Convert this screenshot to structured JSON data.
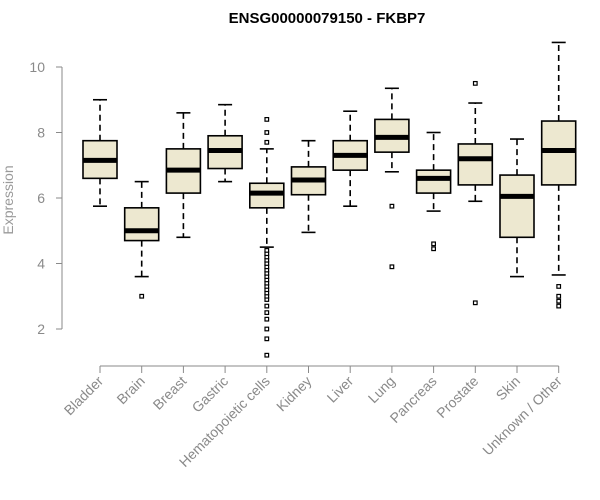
{
  "chart_data": {
    "type": "boxplot",
    "title": "ENSG00000079150 - FKBP7",
    "ylabel": "Expression",
    "xlabel": "",
    "ylim": [
      1.0,
      11.0
    ],
    "yticks": [
      2,
      4,
      6,
      8,
      10
    ],
    "grid": false,
    "colors": {
      "box_fill": "#ede8d0",
      "box_stroke": "#000000",
      "axis": "#8a8a8a"
    },
    "categories": [
      "Bladder",
      "Brain",
      "Breast",
      "Gastric",
      "Hematopoietic cells",
      "Kidney",
      "Liver",
      "Lung",
      "Pancreas",
      "Prostate",
      "Skin",
      "Unknown / Other"
    ],
    "boxes": [
      {
        "name": "Bladder",
        "whisker_low": 5.75,
        "q1": 6.6,
        "median": 7.15,
        "q3": 7.75,
        "whisker_high": 9.0,
        "outliers": []
      },
      {
        "name": "Brain",
        "whisker_low": 3.6,
        "q1": 4.7,
        "median": 5.0,
        "q3": 5.7,
        "whisker_high": 6.5,
        "outliers": [
          3.0
        ]
      },
      {
        "name": "Breast",
        "whisker_low": 4.8,
        "q1": 6.15,
        "median": 6.85,
        "q3": 7.5,
        "whisker_high": 8.6,
        "outliers": []
      },
      {
        "name": "Gastric",
        "whisker_low": 6.5,
        "q1": 6.9,
        "median": 7.45,
        "q3": 7.9,
        "whisker_high": 8.85,
        "outliers": []
      },
      {
        "name": "Hematopoietic cells",
        "whisker_low": 4.5,
        "q1": 5.7,
        "median": 6.15,
        "q3": 6.45,
        "whisker_high": 7.5,
        "outliers": [
          1.2,
          1.7,
          2.0,
          2.3,
          2.5,
          2.7,
          2.9,
          3.0,
          3.1,
          3.2,
          3.3,
          3.4,
          3.5,
          3.6,
          3.7,
          3.8,
          3.9,
          4.0,
          4.1,
          4.2,
          4.3,
          4.4,
          7.7,
          8.0,
          8.4
        ]
      },
      {
        "name": "Kidney",
        "whisker_low": 4.95,
        "q1": 6.1,
        "median": 6.55,
        "q3": 6.95,
        "whisker_high": 7.75,
        "outliers": []
      },
      {
        "name": "Liver",
        "whisker_low": 5.75,
        "q1": 6.85,
        "median": 7.3,
        "q3": 7.75,
        "whisker_high": 8.65,
        "outliers": []
      },
      {
        "name": "Lung",
        "whisker_low": 6.8,
        "q1": 7.4,
        "median": 7.85,
        "q3": 8.4,
        "whisker_high": 9.35,
        "outliers": [
          5.75,
          3.9
        ]
      },
      {
        "name": "Pancreas",
        "whisker_low": 5.6,
        "q1": 6.15,
        "median": 6.6,
        "q3": 6.85,
        "whisker_high": 8.0,
        "outliers": [
          4.6,
          4.45
        ]
      },
      {
        "name": "Prostate",
        "whisker_low": 5.9,
        "q1": 6.4,
        "median": 7.2,
        "q3": 7.65,
        "whisker_high": 8.9,
        "outliers": [
          9.5,
          2.8
        ]
      },
      {
        "name": "Skin",
        "whisker_low": 3.6,
        "q1": 4.8,
        "median": 6.05,
        "q3": 6.7,
        "whisker_high": 7.8,
        "outliers": []
      },
      {
        "name": "Unknown / Other",
        "whisker_low": 3.65,
        "q1": 6.4,
        "median": 7.45,
        "q3": 8.35,
        "whisker_high": 10.75,
        "outliers": [
          3.3,
          3.0,
          2.85,
          2.7
        ]
      }
    ]
  }
}
